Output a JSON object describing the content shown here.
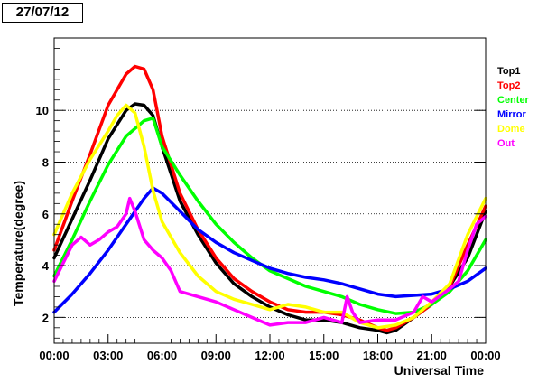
{
  "header": {
    "date": "27/07/12"
  },
  "chart_data": {
    "type": "line",
    "xlabel": "Universal Time",
    "ylabel": "Temperature(degree)",
    "x_unit": "hours UT",
    "xlim": [
      0,
      24
    ],
    "ylim": [
      1,
      12.8
    ],
    "x_ticks": [
      "00:00",
      "03:00",
      "06:00",
      "09:00",
      "12:00",
      "15:00",
      "18:00",
      "21:00",
      "00:00"
    ],
    "y_ticks": [
      "2",
      "4",
      "6",
      "8",
      "10"
    ],
    "y_tick_values": [
      2,
      4,
      6,
      8,
      10
    ],
    "grid": "horizontal dotted",
    "legend_position": "right",
    "series": [
      {
        "name": "Top1",
        "color": "#000000",
        "x": [
          0,
          1,
          2,
          3,
          4,
          4.5,
          5,
          5.5,
          6,
          7,
          8,
          9,
          10,
          11,
          12,
          13,
          14,
          15,
          16,
          17,
          18,
          18.5,
          19,
          20,
          21,
          22,
          23,
          24
        ],
        "y": [
          4.3,
          5.8,
          7.3,
          8.9,
          10.0,
          10.25,
          10.2,
          9.8,
          8.6,
          6.5,
          5.2,
          4.1,
          3.3,
          2.8,
          2.4,
          2.1,
          1.9,
          1.9,
          1.8,
          1.6,
          1.5,
          1.4,
          1.5,
          2.0,
          2.5,
          3.2,
          4.3,
          6.1
        ]
      },
      {
        "name": "Top2",
        "color": "#ff0000",
        "x": [
          0,
          1,
          2,
          3,
          4,
          4.5,
          5,
          5.5,
          6,
          7,
          8,
          9,
          10,
          11,
          12,
          13,
          14,
          15,
          16,
          17,
          18,
          18.5,
          19,
          20,
          21,
          22,
          23,
          24
        ],
        "y": [
          4.6,
          6.5,
          8.3,
          10.2,
          11.4,
          11.7,
          11.6,
          10.8,
          9.0,
          6.8,
          5.4,
          4.3,
          3.5,
          3.0,
          2.6,
          2.3,
          2.2,
          2.2,
          2.1,
          1.9,
          1.6,
          1.5,
          1.6,
          2.0,
          2.5,
          3.2,
          4.8,
          6.3
        ]
      },
      {
        "name": "Center",
        "color": "#00ff00",
        "x": [
          0,
          1,
          2,
          3,
          4,
          5,
          5.5,
          6,
          7,
          8,
          9,
          10,
          11,
          12,
          13,
          14,
          15,
          16,
          17,
          18,
          19,
          20,
          21,
          22,
          23,
          24
        ],
        "y": [
          3.6,
          5.0,
          6.5,
          7.9,
          9.0,
          9.6,
          9.7,
          8.6,
          7.5,
          6.5,
          5.6,
          4.9,
          4.3,
          3.8,
          3.5,
          3.2,
          3.0,
          2.8,
          2.5,
          2.3,
          2.15,
          2.2,
          2.5,
          3.0,
          3.8,
          5.0
        ]
      },
      {
        "name": "Mirror",
        "color": "#0000ff",
        "x": [
          0,
          1,
          2,
          3,
          4,
          5,
          5.5,
          6,
          7,
          8,
          9,
          10,
          11,
          12,
          13,
          14,
          15,
          16,
          17,
          18,
          19,
          20,
          21,
          22,
          23,
          24
        ],
        "y": [
          2.2,
          2.9,
          3.7,
          4.6,
          5.6,
          6.6,
          7.0,
          6.8,
          6.1,
          5.4,
          4.9,
          4.5,
          4.2,
          3.9,
          3.7,
          3.55,
          3.45,
          3.3,
          3.1,
          2.9,
          2.8,
          2.85,
          2.9,
          3.1,
          3.4,
          3.9
        ]
      },
      {
        "name": "Dome",
        "color": "#ffff00",
        "x": [
          0,
          1,
          2,
          3,
          3.5,
          4,
          4.5,
          5,
          5.5,
          6,
          7,
          8,
          9,
          10,
          11,
          12,
          13,
          14,
          15,
          16,
          17,
          18,
          19,
          20,
          21,
          22,
          23,
          24
        ],
        "y": [
          5.2,
          6.8,
          8.1,
          9.2,
          9.8,
          10.2,
          9.9,
          8.6,
          6.9,
          5.7,
          4.5,
          3.6,
          3.0,
          2.7,
          2.5,
          2.3,
          2.5,
          2.4,
          2.2,
          2.2,
          1.8,
          1.6,
          1.7,
          2.0,
          2.6,
          3.3,
          5.2,
          6.6
        ]
      },
      {
        "name": "Out",
        "color": "#ff00ff",
        "x": [
          0,
          0.5,
          1,
          1.5,
          2,
          2.5,
          3,
          3.5,
          4,
          4.2,
          4.5,
          5,
          5.5,
          6,
          6.5,
          7,
          8,
          9,
          10,
          11,
          12,
          13,
          14,
          15,
          16,
          16.3,
          16.6,
          17,
          18,
          19,
          20,
          20.5,
          21,
          22,
          22.5,
          23,
          23.5,
          24
        ],
        "y": [
          3.4,
          4.1,
          4.8,
          5.1,
          4.8,
          5.0,
          5.3,
          5.5,
          6.0,
          6.6,
          6.1,
          5.0,
          4.6,
          4.3,
          3.8,
          3.0,
          2.8,
          2.6,
          2.3,
          2.0,
          1.7,
          1.8,
          1.8,
          2.0,
          1.8,
          2.8,
          2.2,
          1.8,
          1.9,
          1.9,
          2.2,
          2.8,
          2.6,
          3.1,
          3.4,
          4.6,
          5.6,
          5.9
        ]
      }
    ]
  }
}
